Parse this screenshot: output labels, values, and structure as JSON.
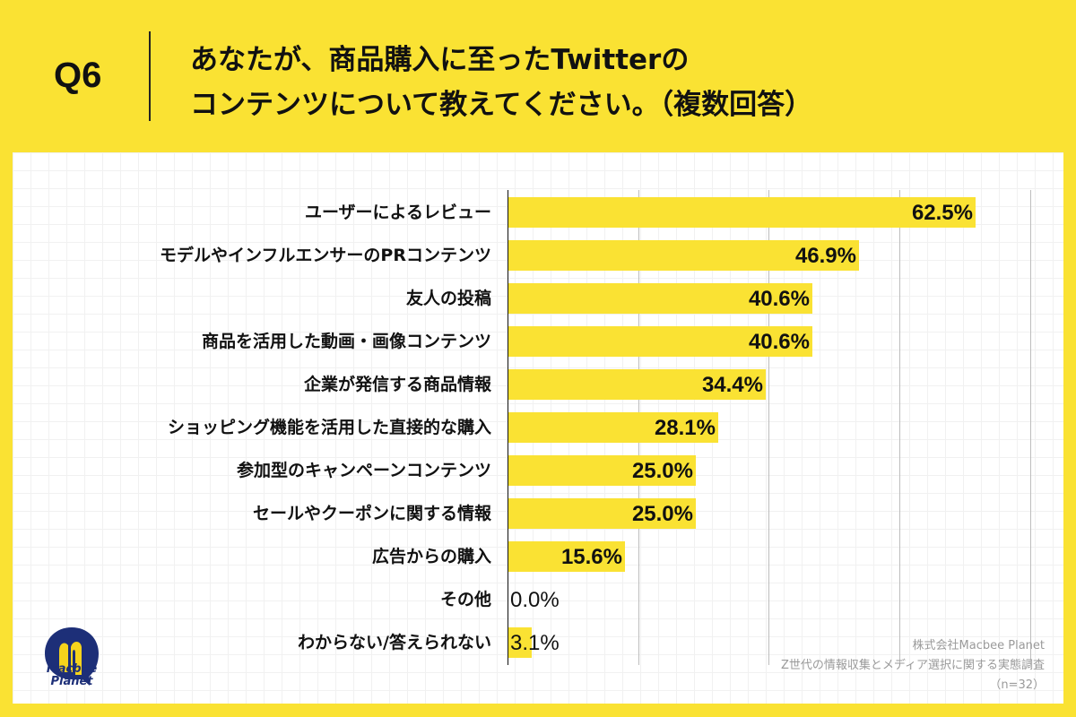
{
  "header": {
    "question_number": "Q6",
    "title_line1": "あなたが、商品購入に至ったTwitterの",
    "title_line2": "コンテンツについて教えてください。（複数回答）"
  },
  "colors": {
    "background": "#FAE233",
    "bar": "#FAE233",
    "panel": "#FFFFFF",
    "text": "#111111",
    "footnote": "#9A9A9A",
    "logo_blue": "#1D2F78"
  },
  "logo": {
    "line1": "Macbee",
    "line2": "Planet"
  },
  "footnote": {
    "line1": "株式会社Macbee Planet",
    "line2": "Z世代の情報収集とメディア選択に関する実態調査",
    "line3": "（n=32）"
  },
  "chart_data": {
    "type": "bar",
    "orientation": "horizontal",
    "title": "あなたが、商品購入に至ったTwitterのコンテンツについて教えてください。（複数回答）",
    "xlabel": "",
    "ylabel": "",
    "xlim": [
      0,
      70
    ],
    "grid": true,
    "legend": null,
    "sample_size": "n=32",
    "categories": [
      "ユーザーによるレビュー",
      "モデルやインフルエンサーのPRコンテンツ",
      "友人の投稿",
      "商品を活用した動画・画像コンテンツ",
      "企業が発信する商品情報",
      "ショッピング機能を活用した直接的な購入",
      "参加型のキャンペーンコンテンツ",
      "セールやクーポンに関する情報",
      "広告からの購入",
      "その他",
      "わからない/答えられない"
    ],
    "values": [
      62.5,
      46.9,
      40.6,
      40.6,
      34.4,
      28.1,
      25.0,
      25.0,
      15.6,
      0.0,
      3.1
    ],
    "value_labels": [
      "62.5%",
      "46.9%",
      "40.6%",
      "40.6%",
      "34.4%",
      "28.1%",
      "25.0%",
      "25.0%",
      "15.6%",
      "0.0%",
      "3.1%"
    ],
    "unit": "%"
  }
}
